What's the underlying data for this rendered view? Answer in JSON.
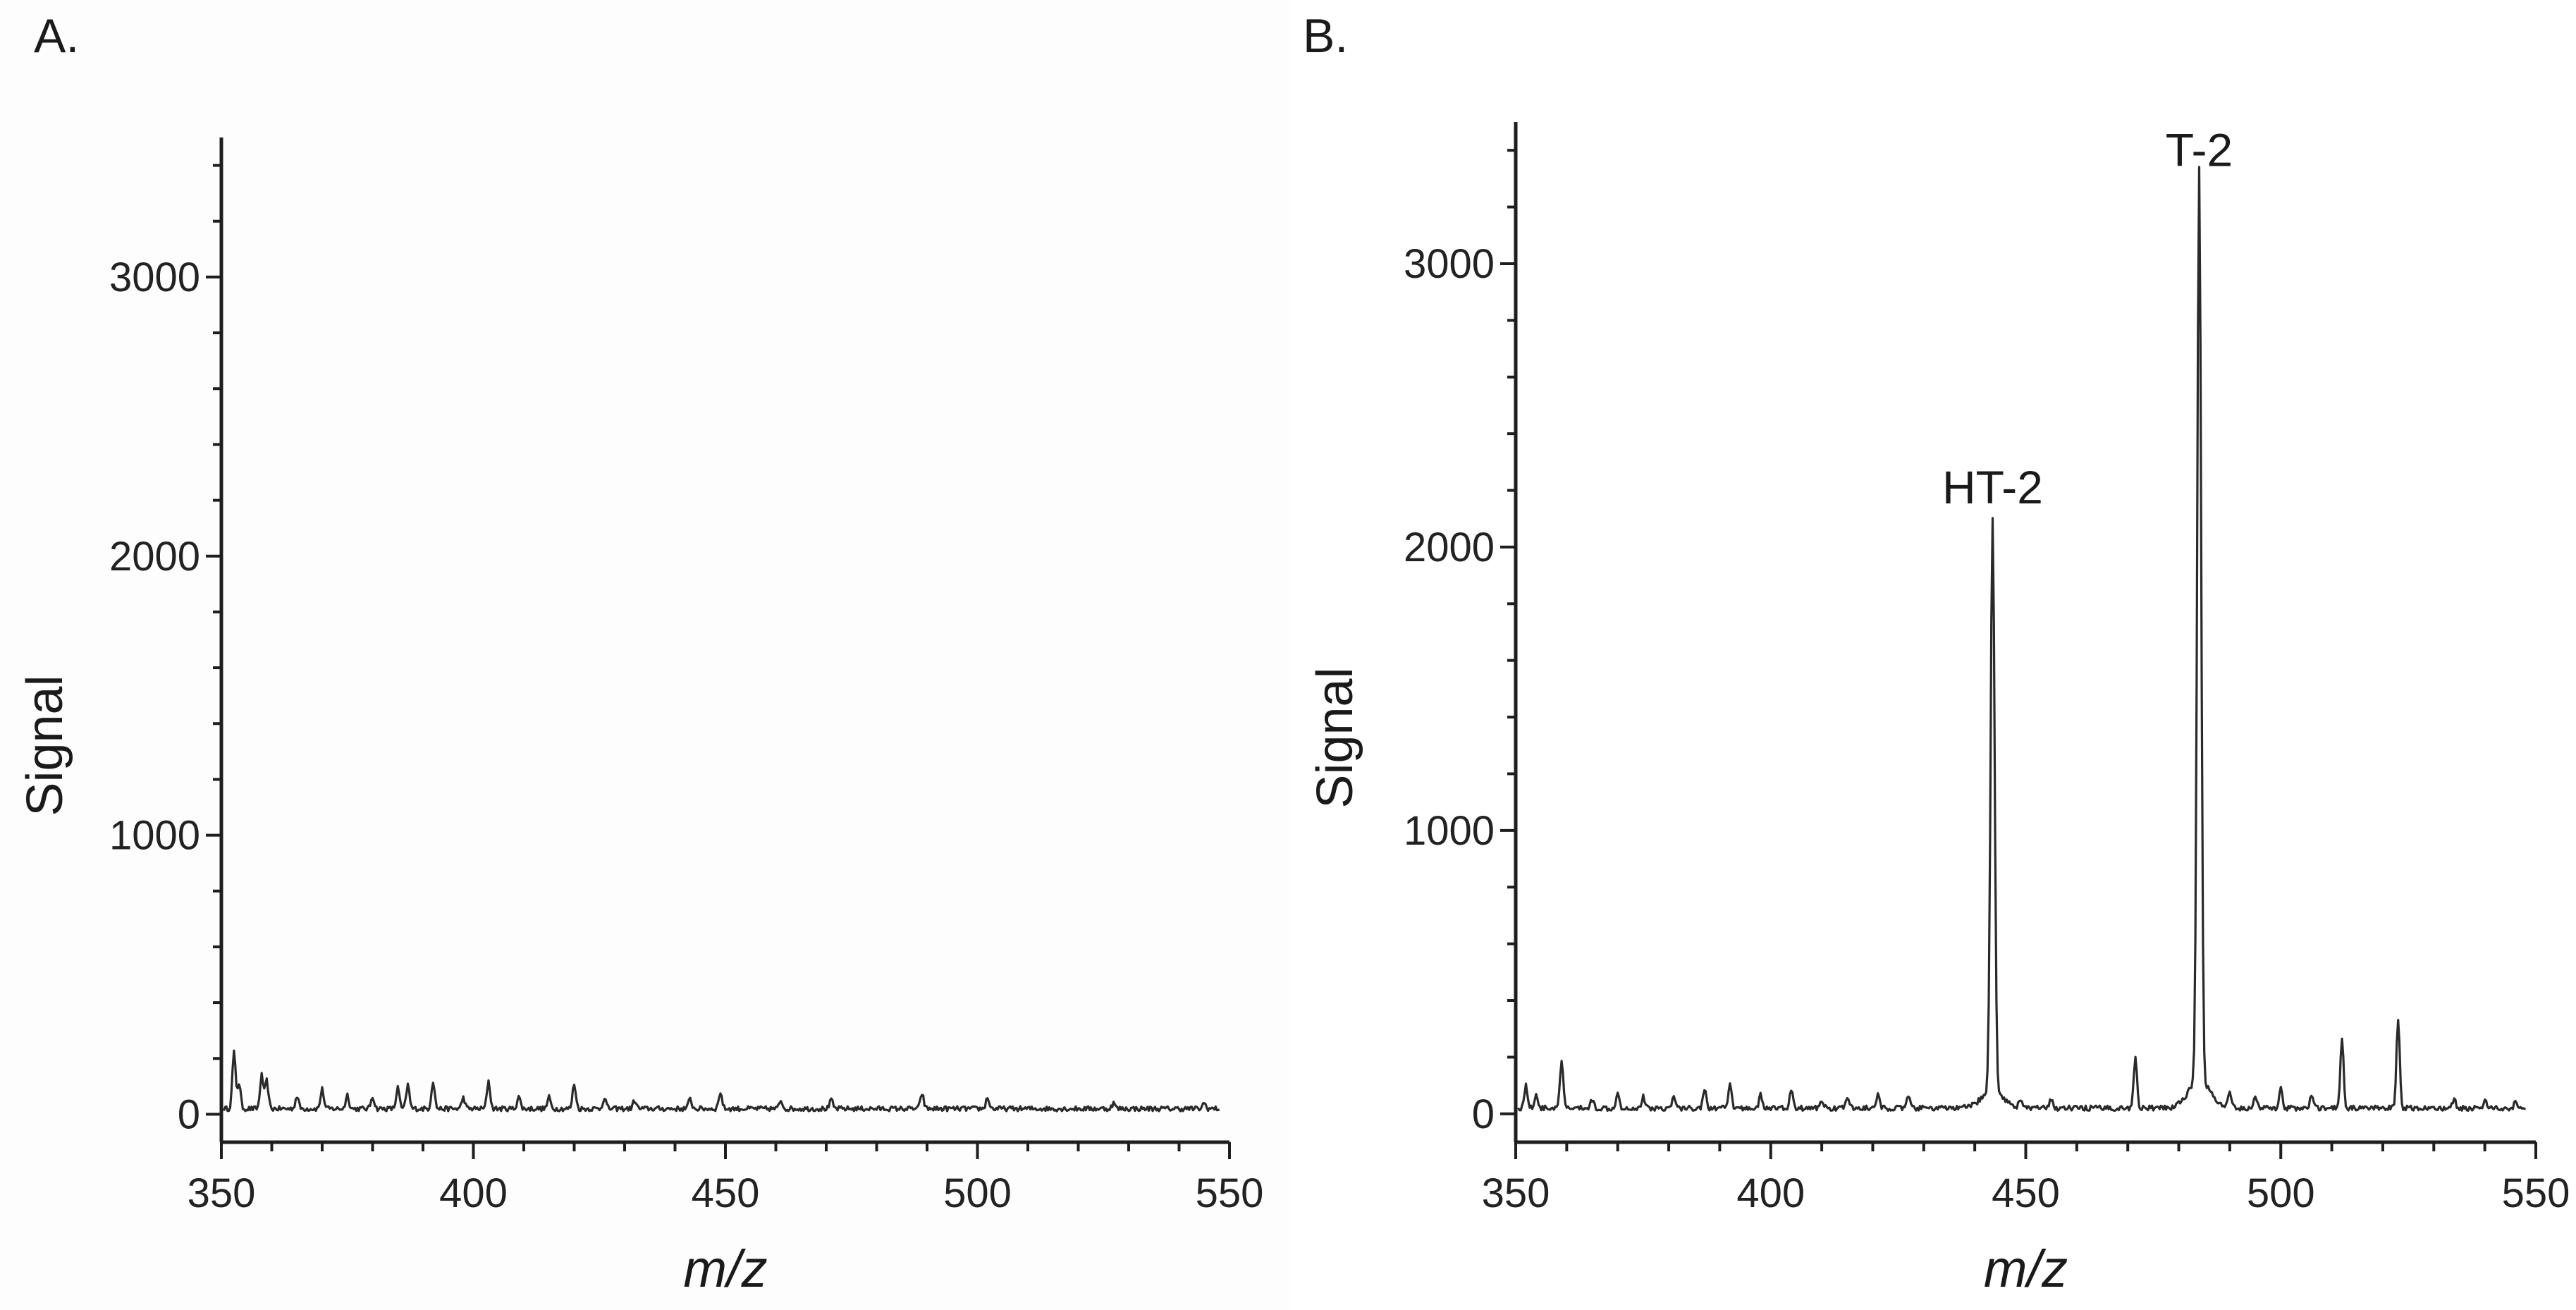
{
  "chart_data": [
    {
      "panel_label": "A.",
      "type": "line",
      "xlabel": "m/z",
      "ylabel": "Signal",
      "xlim": [
        350,
        550
      ],
      "ylim": [
        -100,
        3500
      ],
      "xticks": [
        350,
        400,
        450,
        500,
        550
      ],
      "yticks": [
        0,
        1000,
        2000,
        3000
      ],
      "baseline": 20,
      "peaks": [
        {
          "x": 352.5,
          "y": 200
        },
        {
          "x": 353.5,
          "y": 90
        },
        {
          "x": 358,
          "y": 120
        },
        {
          "x": 359,
          "y": 100
        },
        {
          "x": 365,
          "y": 45
        },
        {
          "x": 370,
          "y": 70
        },
        {
          "x": 375,
          "y": 50
        },
        {
          "x": 380,
          "y": 45
        },
        {
          "x": 385,
          "y": 75
        },
        {
          "x": 387,
          "y": 85
        },
        {
          "x": 392,
          "y": 100
        },
        {
          "x": 398,
          "y": 40
        },
        {
          "x": 403,
          "y": 100
        },
        {
          "x": 409,
          "y": 45
        },
        {
          "x": 415,
          "y": 40
        },
        {
          "x": 420,
          "y": 90
        },
        {
          "x": 426,
          "y": 40
        },
        {
          "x": 432,
          "y": 30
        },
        {
          "x": 443,
          "y": 35
        },
        {
          "x": 449,
          "y": 60
        },
        {
          "x": 461,
          "y": 30
        },
        {
          "x": 471,
          "y": 30
        },
        {
          "x": 489,
          "y": 55
        },
        {
          "x": 502,
          "y": 40
        },
        {
          "x": 527,
          "y": 20
        },
        {
          "x": 545,
          "y": 20
        }
      ],
      "annotations": []
    },
    {
      "panel_label": "B.",
      "type": "line",
      "xlabel": "m/z",
      "ylabel": "Signal",
      "xlim": [
        350,
        550
      ],
      "ylim": [
        -100,
        3500
      ],
      "xticks": [
        350,
        400,
        450,
        500,
        550
      ],
      "yticks": [
        0,
        1000,
        2000,
        3000
      ],
      "baseline": 20,
      "peaks": [
        {
          "x": 352,
          "y": 80
        },
        {
          "x": 354,
          "y": 50
        },
        {
          "x": 359,
          "y": 165
        },
        {
          "x": 365,
          "y": 30
        },
        {
          "x": 370,
          "y": 60
        },
        {
          "x": 375,
          "y": 40
        },
        {
          "x": 381,
          "y": 40
        },
        {
          "x": 387,
          "y": 70
        },
        {
          "x": 392,
          "y": 80
        },
        {
          "x": 398,
          "y": 45
        },
        {
          "x": 404,
          "y": 65
        },
        {
          "x": 410,
          "y": 30
        },
        {
          "x": 415,
          "y": 40
        },
        {
          "x": 421,
          "y": 45
        },
        {
          "x": 427,
          "y": 40
        },
        {
          "x": 443.5,
          "y": 2030
        },
        {
          "x": 449,
          "y": 30
        },
        {
          "x": 455,
          "y": 30
        },
        {
          "x": 471.5,
          "y": 185
        },
        {
          "x": 484,
          "y": 3220
        },
        {
          "x": 490,
          "y": 50
        },
        {
          "x": 495,
          "y": 45
        },
        {
          "x": 500,
          "y": 75
        },
        {
          "x": 506,
          "y": 45
        },
        {
          "x": 512,
          "y": 240
        },
        {
          "x": 523,
          "y": 310
        },
        {
          "x": 534,
          "y": 30
        },
        {
          "x": 540,
          "y": 30
        },
        {
          "x": 546,
          "y": 20
        }
      ],
      "annotations": [
        {
          "text": "HT-2",
          "x": 443.5,
          "y": 2030
        },
        {
          "text": "T-2",
          "x": 484,
          "y": 3220
        }
      ]
    }
  ]
}
